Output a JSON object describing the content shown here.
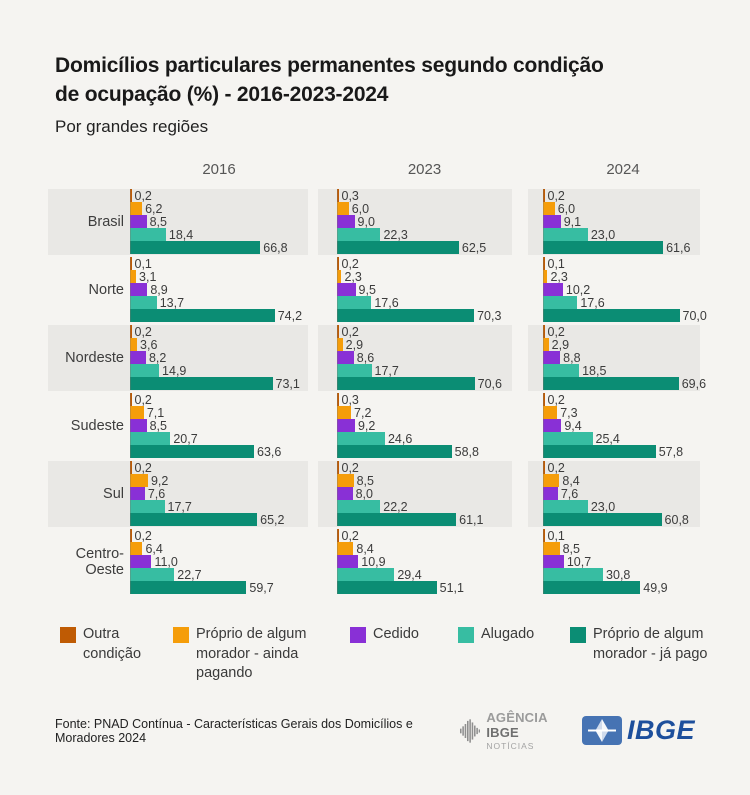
{
  "page": {
    "title_lines": [
      "Domicílios particulares permanentes segundo condição",
      "de ocupação (%) - 2016-2023-2024"
    ],
    "subtitle": "Por grandes regiões",
    "source": "Fonte: PNAD Contínua - Características Gerais dos Domicílios e Moradores 2024"
  },
  "logos": {
    "agencia_word1": "AGÊNCIA",
    "agencia_word2": "IBGE",
    "agencia_line2": "NOTÍCIAS",
    "ibge": "IBGE",
    "ibge_blue": "#1d4f9c",
    "ibge_square_blue": "#4673b3"
  },
  "legend": [
    {
      "label": "Outra condição",
      "color": "#bf5b04"
    },
    {
      "label": "Próprio de algum morador - ainda pagando",
      "color": "#f59d0a"
    },
    {
      "label": "Cedido",
      "color": "#8930d6"
    },
    {
      "label": "Alugado",
      "color": "#37bda2"
    },
    {
      "label": "Próprio de algum morador - já pago",
      "color": "#0b8d74"
    }
  ],
  "colors": {
    "background": "#f5f4f1",
    "row_stripe": "#e9e8e5"
  },
  "chart_data": {
    "type": "bar",
    "orientation": "horizontal",
    "unit": "%",
    "title": "Domicílios particulares permanentes segundo condição de ocupação (%) - 2016-2023-2024",
    "subtitle": "Por grandes regiões",
    "years": [
      "2016",
      "2023",
      "2024"
    ],
    "categories": [
      "Brasil",
      "Norte",
      "Nordeste",
      "Sudeste",
      "Sul",
      "Centro-Oeste"
    ],
    "series_labels": [
      "Outra condição",
      "Próprio de algum morador - ainda pagando",
      "Cedido",
      "Alugado",
      "Próprio de algum morador - já pago"
    ],
    "series_colors": [
      "#bf5b04",
      "#f59d0a",
      "#8930d6",
      "#37bda2",
      "#0b8d74"
    ],
    "xlim": [
      0,
      78
    ],
    "value_format": "decimal-comma",
    "values": {
      "Brasil": {
        "2016": [
          0.2,
          6.2,
          8.5,
          18.4,
          66.8
        ],
        "2023": [
          0.3,
          6.0,
          9.0,
          22.3,
          62.5
        ],
        "2024": [
          0.2,
          6.0,
          9.1,
          23.0,
          61.6
        ]
      },
      "Norte": {
        "2016": [
          0.1,
          3.1,
          8.9,
          13.7,
          74.2
        ],
        "2023": [
          0.2,
          2.3,
          9.5,
          17.6,
          70.3
        ],
        "2024": [
          0.1,
          2.3,
          10.2,
          17.6,
          70.0
        ]
      },
      "Nordeste": {
        "2016": [
          0.2,
          3.6,
          8.2,
          14.9,
          73.1
        ],
        "2023": [
          0.2,
          2.9,
          8.6,
          17.7,
          70.6
        ],
        "2024": [
          0.2,
          2.9,
          8.8,
          18.5,
          69.6
        ]
      },
      "Sudeste": {
        "2016": [
          0.2,
          7.1,
          8.5,
          20.7,
          63.6
        ],
        "2023": [
          0.3,
          7.2,
          9.2,
          24.6,
          58.8
        ],
        "2024": [
          0.2,
          7.3,
          9.4,
          25.4,
          57.8
        ]
      },
      "Sul": {
        "2016": [
          0.2,
          9.2,
          7.6,
          17.7,
          65.2
        ],
        "2023": [
          0.2,
          8.5,
          8.0,
          22.2,
          61.1
        ],
        "2024": [
          0.2,
          8.4,
          7.6,
          23.0,
          60.8
        ]
      },
      "Centro-Oeste": {
        "2016": [
          0.2,
          6.4,
          11.0,
          22.7,
          59.7
        ],
        "2023": [
          0.2,
          8.4,
          10.9,
          29.4,
          51.1
        ],
        "2024": [
          0.1,
          8.5,
          10.7,
          30.8,
          49.9
        ]
      }
    }
  }
}
